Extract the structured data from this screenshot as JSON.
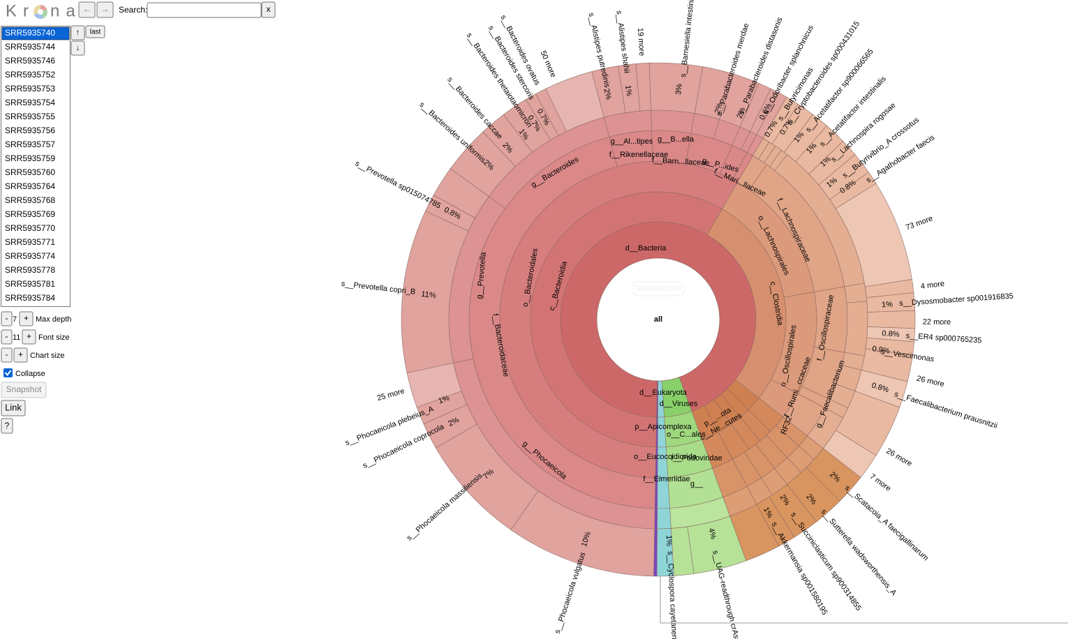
{
  "logo": {
    "left": "Kr",
    "right": "na"
  },
  "toolbar": {
    "back": "←",
    "forward": "→",
    "search_label": "Search:",
    "clear": "x"
  },
  "datasets": [
    "SRR5935740",
    "SRR5935744",
    "SRR5935746",
    "SRR5935752",
    "SRR5935753",
    "SRR5935754",
    "SRR5935755",
    "SRR5935756",
    "SRR5935757",
    "SRR5935759",
    "SRR5935760",
    "SRR5935764",
    "SRR5935768",
    "SRR5935769",
    "SRR5935770",
    "SRR5935771",
    "SRR5935774",
    "SRR5935778",
    "SRR5935781",
    "SRR5935784"
  ],
  "dataset_buttons": {
    "up": "↑",
    "last": "last",
    "down": "↓"
  },
  "controls": [
    {
      "minus": "-",
      "value": "7",
      "plus": "+",
      "label": "Max depth"
    },
    {
      "minus": "-",
      "value": "11",
      "plus": "+",
      "label": "Font size"
    },
    {
      "minus": "-",
      "plus": "+",
      "label": "Chart size"
    }
  ],
  "collapse": "Collapse",
  "snapshot": "Snapshot",
  "link": "Link",
  "help": "?",
  "chart": {
    "center": "all",
    "dataset": "SRR5935740",
    "labels": [
      "d__Bacteria",
      "c__Bacteroidia",
      "o__Bacteroidales",
      "f__Bacteroidaceae",
      "g__Prevotella",
      "g__Phocaeicola",
      "g__Bacteroides",
      "f__Rikenellaceae",
      "g__Al...tipes",
      "g__B...ella",
      "f__Barn...llaceae",
      "g__P...ides",
      "f__Mari...llaceae",
      "f__Lachnospiraceae",
      "o__Lachnospirales",
      "c__Clostridia",
      "o__Oscillospirales",
      "f__Oscillospiraceae",
      "f__Rumi...ccaceae",
      "g__Faecalibacterium",
      "d__Eukaryota",
      "d__Viruses",
      "p__Apicomplexa",
      "o__C...ales",
      "o__Eucoccidiorida",
      "f__Podoviridae",
      "f__Eimeriidae",
      "g__",
      "p__...ota",
      "c__Ne...cutes",
      "RF32",
      "s__Phocaeicola vulgatus",
      "10%",
      "s__Phocaeicola massiliensis",
      "7%",
      "s__Phocaeicola coprocola",
      "2%",
      "s__Phocaeicola plebeius_A",
      "1%",
      "25 more",
      "s__Prevotella copri_B",
      "11%",
      "s__Prevotella sp015074785",
      "0.8%",
      "s__Bacteroides uniformis",
      "2%",
      "s__Bacteroides caccae",
      "2%",
      "s__Bacteroides thetaiotaomicron",
      "1%",
      "s__Bacteroides stercoris",
      "0.7%",
      "s__Bacteroides ovatus",
      "0.7%",
      "50 more",
      "s__Alistipes putredinis",
      "2%",
      "s__Alistipes shahii",
      "1%",
      "19 more",
      "s__Barnesiella intestini",
      "3%",
      "s__Parabacteroides merdae",
      "2%",
      "s__Parabacteroides distasonis",
      "2%",
      "s__Odoribacter splanchnicus",
      "0.6%",
      "s__Butyricimonas",
      "0.7%",
      "s__Cryptobacteroides sp000431015",
      "0.7%",
      "s__Acetatifactor sp900066565",
      "1%",
      "s__Acetatifactor intestinalis",
      "1%",
      "s__Lachnospira rogosae",
      "1%",
      "s__Butyrivibrio_A crossotus",
      "1%",
      "s__Agathobacter faecis",
      "0.8%",
      "73 more",
      "4 more",
      "s__Dysosmobacter sp001916835",
      "1%",
      "22 more",
      "s__ER4 sp000765235",
      "0.8%",
      "s__Vescimonas",
      "0.9%",
      "26 more",
      "s__Faecalibacterium prausnitzii",
      "0.8%",
      "26 more",
      "7 more",
      "s__Scatacoia_A faecigallinarum",
      "2%",
      "s__Sutterella wadsworthensis_A",
      "2%",
      "s__Succiniclasticum sp900314855",
      "2%",
      "s__Akkermansia sp001580195",
      "1%",
      "s__UAG-readthrough crAss",
      "4%",
      "s__Cyclospora cayetanensis",
      "1%"
    ]
  }
}
